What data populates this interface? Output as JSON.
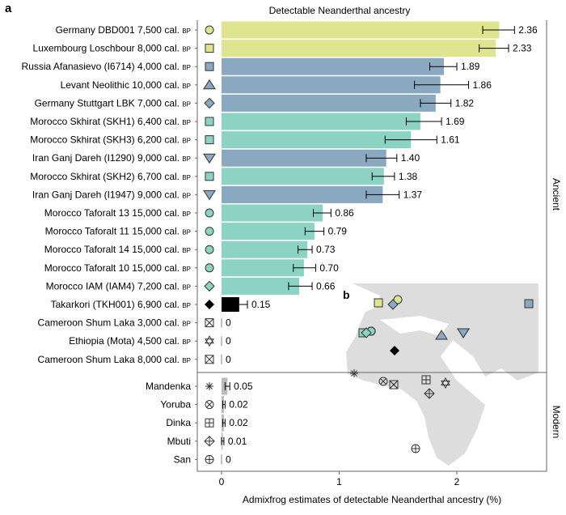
{
  "chart_data": {
    "type": "bar",
    "orientation": "horizontal",
    "panel_a_label": "a",
    "panel_b_label": "b",
    "title": "Detectable Neanderthal ancestry",
    "xlabel": "Admixfrog estimates of detectable Neanderthal ancestry (%)",
    "xlim": [
      -0.2,
      2.75
    ],
    "xticks": [
      "0",
      "1",
      "2"
    ],
    "xtick_values": [
      0,
      1,
      2
    ],
    "group_labels": [
      "Ancient",
      "Modern"
    ],
    "colors": {
      "europe": "#dfe58f",
      "eurasia": "#8aa8c0",
      "africa": "#8dd3c4",
      "takarkori": "#000000",
      "modern": "#bbbbbb",
      "map": "#dddddd"
    },
    "series": [
      {
        "name": "Germany DBD001 7,500 cal.",
        "suffix": "BP",
        "value": 2.36,
        "label": "2.36",
        "lo": 2.22,
        "hi": 2.49,
        "color": "europe",
        "marker": "circle",
        "group": "Ancient"
      },
      {
        "name": "Luxembourg Loschbour 8,000 cal.",
        "suffix": "BP",
        "value": 2.33,
        "label": "2.33",
        "lo": 2.19,
        "hi": 2.44,
        "color": "europe",
        "marker": "square",
        "group": "Ancient"
      },
      {
        "name": "Russia Afanasievo (I6714) 4,000 cal.",
        "suffix": "BP",
        "value": 1.89,
        "label": "1.89",
        "lo": 1.77,
        "hi": 2.0,
        "color": "eurasia",
        "marker": "square",
        "group": "Ancient"
      },
      {
        "name": "Levant Neolithic 10,000 cal.",
        "suffix": "BP",
        "value": 1.86,
        "label": "1.86",
        "lo": 1.64,
        "hi": 2.1,
        "color": "eurasia",
        "marker": "triangle",
        "group": "Ancient"
      },
      {
        "name": "Germany Stuttgart LBK 7,000 cal.",
        "suffix": "BP",
        "value": 1.82,
        "label": "1.82",
        "lo": 1.69,
        "hi": 1.95,
        "color": "eurasia",
        "marker": "diamond",
        "group": "Ancient"
      },
      {
        "name": "Morocco Skhirat (SKH1) 6,400 cal.",
        "suffix": "BP",
        "value": 1.69,
        "label": "1.69",
        "lo": 1.57,
        "hi": 1.87,
        "color": "africa",
        "marker": "square",
        "group": "Ancient"
      },
      {
        "name": "Morocco Skhirat (SKH3) 6,200 cal.",
        "suffix": "BP",
        "value": 1.61,
        "label": "1.61",
        "lo": 1.39,
        "hi": 1.83,
        "color": "africa",
        "marker": "square",
        "group": "Ancient"
      },
      {
        "name": "Iran Ganj Dareh (I1290) 9,000 cal.",
        "suffix": "BP",
        "value": 1.4,
        "label": "1.40",
        "lo": 1.23,
        "hi": 1.49,
        "color": "eurasia",
        "marker": "triangle-down",
        "group": "Ancient"
      },
      {
        "name": "Morocco Skhirat (SKH2) 6,700 cal.",
        "suffix": "BP",
        "value": 1.38,
        "label": "1.38",
        "lo": 1.28,
        "hi": 1.47,
        "color": "africa",
        "marker": "square",
        "group": "Ancient"
      },
      {
        "name": "Iran Ganj Dareh (I1947) 9,000 cal.",
        "suffix": "BP",
        "value": 1.37,
        "label": "1.37",
        "lo": 1.23,
        "hi": 1.51,
        "color": "eurasia",
        "marker": "triangle-down",
        "group": "Ancient"
      },
      {
        "name": "Morocco Taforalt 13 15,000 cal.",
        "suffix": "BP",
        "value": 0.86,
        "label": "0.86",
        "lo": 0.78,
        "hi": 0.93,
        "color": "africa",
        "marker": "circle",
        "group": "Ancient"
      },
      {
        "name": "Morocco Taforalt 11 15,000 cal.",
        "suffix": "BP",
        "value": 0.79,
        "label": "0.79",
        "lo": 0.71,
        "hi": 0.87,
        "color": "africa",
        "marker": "circle",
        "group": "Ancient"
      },
      {
        "name": "Morocco Taforalt 14 15,000 cal.",
        "suffix": "BP",
        "value": 0.73,
        "label": "0.73",
        "lo": 0.65,
        "hi": 0.77,
        "color": "africa",
        "marker": "circle",
        "group": "Ancient"
      },
      {
        "name": "Morocco Taforalt 10 15,000 cal.",
        "suffix": "BP",
        "value": 0.7,
        "label": "0.70",
        "lo": 0.61,
        "hi": 0.8,
        "color": "africa",
        "marker": "circle",
        "group": "Ancient"
      },
      {
        "name": "Morocco IAM (IAM4) 7,200 cal.",
        "suffix": "BP",
        "value": 0.66,
        "label": "0.66",
        "lo": 0.57,
        "hi": 0.77,
        "color": "africa",
        "marker": "diamond",
        "group": "Ancient"
      },
      {
        "name": "Takarkori (TKH001) 6,900 cal.",
        "suffix": "BP",
        "value": 0.15,
        "label": "0.15",
        "lo": 0.1,
        "hi": 0.22,
        "color": "takarkori",
        "marker": "diamond-filled",
        "group": "Ancient"
      },
      {
        "name": "Cameroon Shum Laka 3,000 cal.",
        "suffix": "BP",
        "value": 0,
        "label": "0",
        "lo": 0,
        "hi": 0,
        "color": "modern",
        "marker": "square-x",
        "group": "Ancient"
      },
      {
        "name": "Ethiopia (Mota) 4,500 cal.",
        "suffix": "BP",
        "value": 0,
        "label": "0",
        "lo": 0,
        "hi": 0,
        "color": "modern",
        "marker": "star6",
        "group": "Ancient"
      },
      {
        "name": "Cameroon Shum Laka 8,000 cal.",
        "suffix": "BP",
        "value": 0,
        "label": "0",
        "lo": 0,
        "hi": 0,
        "color": "modern",
        "marker": "square-x",
        "group": "Ancient"
      },
      {
        "name": "Mandenka",
        "suffix": "",
        "value": 0.05,
        "label": "0.05",
        "lo": 0.03,
        "hi": 0.07,
        "color": "modern",
        "marker": "asterisk",
        "group": "Modern"
      },
      {
        "name": "Yoruba",
        "suffix": "",
        "value": 0.02,
        "label": "0.02",
        "lo": 0.01,
        "hi": 0.03,
        "color": "modern",
        "marker": "circle-x",
        "group": "Modern"
      },
      {
        "name": "Dinka",
        "suffix": "",
        "value": 0.02,
        "label": "0.02",
        "lo": 0.01,
        "hi": 0.03,
        "color": "modern",
        "marker": "square-plus",
        "group": "Modern"
      },
      {
        "name": "Mbuti",
        "suffix": "",
        "value": 0.01,
        "label": "0.01",
        "lo": 0.0,
        "hi": 0.02,
        "color": "modern",
        "marker": "diamond-plus",
        "group": "Modern"
      },
      {
        "name": "San",
        "suffix": "",
        "value": 0,
        "label": "0",
        "lo": 0,
        "hi": 0,
        "color": "modern",
        "marker": "circle-plus",
        "group": "Modern"
      }
    ]
  }
}
